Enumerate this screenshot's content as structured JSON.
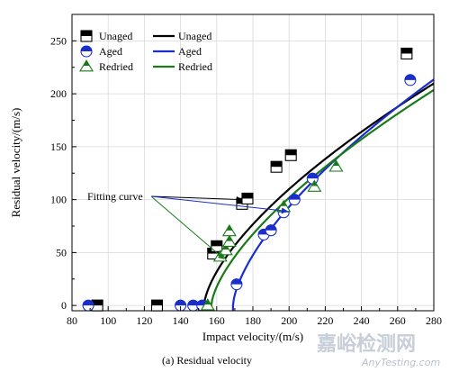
{
  "chart_data": {
    "type": "scatter",
    "xlabel": "Impact velocity/(m/s)",
    "ylabel": "Residual velocity/(m/s)",
    "xlim": [
      80,
      280
    ],
    "ylim": [
      -5,
      275
    ],
    "x_ticks": [
      "80",
      "100",
      "120",
      "140",
      "160",
      "180",
      "200",
      "220",
      "240",
      "260",
      "280"
    ],
    "y_ticks": [
      "0",
      "50",
      "100",
      "150",
      "200",
      "250"
    ],
    "grid": true,
    "legend_placement": "top-left",
    "legend": {
      "points": [
        "Unaged",
        "Aged",
        "Redried"
      ],
      "lines": [
        "Unaged",
        "Aged",
        "Redried"
      ]
    },
    "series": [
      {
        "name": "Unaged",
        "marker": "half-filled-square",
        "color": "#000000",
        "points": [
          [
            94,
            0
          ],
          [
            127,
            0
          ],
          [
            158,
            49
          ],
          [
            160,
            56
          ],
          [
            174,
            96
          ],
          [
            177,
            101
          ],
          [
            193,
            131
          ],
          [
            201,
            142
          ],
          [
            265,
            238
          ]
        ]
      },
      {
        "name": "Aged",
        "marker": "half-filled-circle",
        "color": "#1a2ecc",
        "points": [
          [
            89,
            0
          ],
          [
            140,
            0
          ],
          [
            147,
            0
          ],
          [
            152,
            0
          ],
          [
            171,
            20
          ],
          [
            186,
            67
          ],
          [
            190,
            71
          ],
          [
            197,
            88
          ],
          [
            203,
            100
          ],
          [
            213,
            120
          ],
          [
            267,
            213
          ]
        ]
      },
      {
        "name": "Redried",
        "marker": "half-filled-triangle",
        "color": "#1a7a1a",
        "points": [
          [
            155,
            0
          ],
          [
            162,
            46
          ],
          [
            165,
            52
          ],
          [
            167,
            60
          ],
          [
            167,
            70
          ],
          [
            197,
            93
          ],
          [
            214,
            112
          ],
          [
            226,
            131
          ]
        ]
      }
    ],
    "fits": [
      {
        "name": "Unaged",
        "color": "#000000",
        "v_ballistic": 153,
        "a": 9.0,
        "p": 0.65
      },
      {
        "name": "Aged",
        "color": "#1a2ecc",
        "v_ballistic": 169,
        "a": 10.0,
        "p": 0.65
      },
      {
        "name": "Redried",
        "color": "#1a7a1a",
        "v_ballistic": 157,
        "a": 8.5,
        "p": 0.66
      }
    ],
    "annotations": [
      {
        "text": "Fitting curve",
        "targets": [
          [
            174,
            100
          ],
          [
            199,
            89
          ],
          [
            164,
            44
          ]
        ]
      }
    ]
  },
  "caption": "(a) Residual velocity",
  "watermark": {
    "main": "嘉峪检测网",
    "sub": "AnyTesting.com"
  }
}
